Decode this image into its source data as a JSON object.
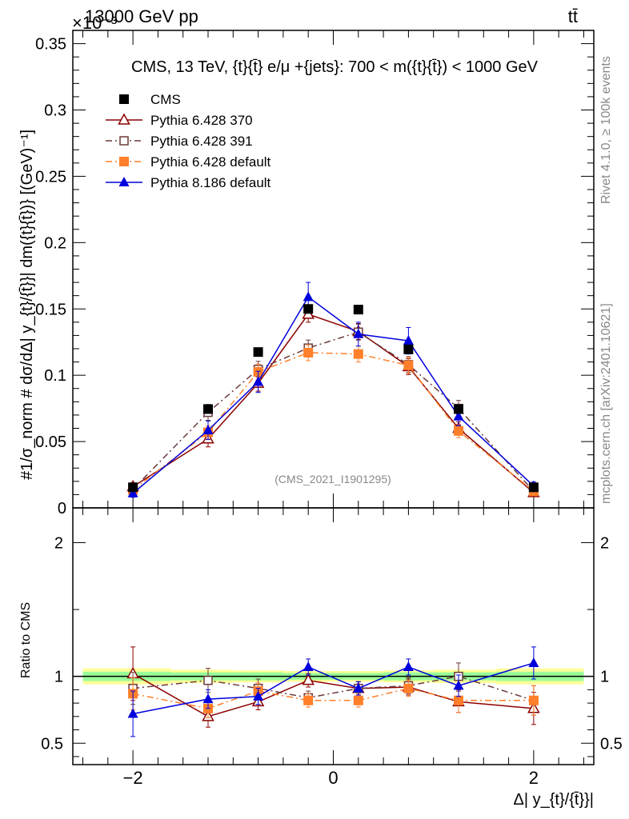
{
  "header": {
    "left": "13000 GeV pp",
    "right": "tt̄",
    "exponent": "×10⁻³"
  },
  "side": {
    "rivet": "Rivet 4.1.0, ≥ 100k events",
    "mcplots": "mcplots.cern.ch [arXiv:2401.10621]"
  },
  "labels": {
    "ratio_ylabel": "Ratio to CMS",
    "watermark": "(CMS_2021_I1901295)"
  },
  "chart_data": [
    {
      "type": "line",
      "title": "CMS, 13 TeV, {t}{t̄} e/μ +{jets}: 700 < m({t}{t̄}) < 1000 GeV",
      "xlabel": "Δ| y_{t}/{t̄}}|",
      "ylabel": "#1/σ_norm # dσ/dΔ| y_{t}/{t̄}}| dm({t}{t̄})} [(GeV)⁻¹]",
      "y_scale_note": "values ×10⁻³",
      "xlim": [
        -2.6,
        2.6
      ],
      "ylim": [
        0,
        0.36
      ],
      "yticks": [
        0,
        0.05,
        0.1,
        0.15,
        0.2,
        0.25,
        0.3,
        0.35
      ],
      "ytick_labels": [
        "0",
        "0.05",
        "0.1",
        "0.15",
        "0.2",
        "0.25",
        "0.3",
        "0.35"
      ],
      "xticks": [
        -2,
        0,
        2
      ],
      "xtick_labels": [
        "−2",
        "0",
        "2"
      ],
      "x": [
        -2,
        -1.25,
        -0.75,
        -0.25,
        0.25,
        0.75,
        1.25,
        2
      ],
      "legend_position": "top-left",
      "series": [
        {
          "name": "CMS",
          "color": "#000000",
          "marker": "square",
          "line": "none",
          "values": [
            0.0155,
            0.0745,
            0.1175,
            0.15,
            0.1495,
            0.1195,
            0.0745,
            0.0155
          ]
        },
        {
          "name": "Pythia 6.428 370",
          "color": "#8b0000",
          "marker": "triangle-open",
          "line": "solid",
          "values": [
            0.016,
            0.052,
            0.094,
            0.146,
            0.133,
            0.1065,
            0.06,
            0.0115
          ],
          "errors": [
            0.003,
            0.006,
            0.006,
            0.006,
            0.006,
            0.006,
            0.005,
            0.002
          ]
        },
        {
          "name": "Pythia 6.428 391",
          "color": "#6b3a3a",
          "marker": "square-open",
          "line": "dashdot",
          "values": [
            0.014,
            0.072,
            0.1045,
            0.1205,
            0.1325,
            0.108,
            0.075,
            0.0125
          ],
          "errors": [
            0.002,
            0.006,
            0.006,
            0.006,
            0.006,
            0.006,
            0.006,
            0.002
          ]
        },
        {
          "name": "Pythia 6.428 default",
          "color": "#ff7f2a",
          "marker": "square",
          "line": "dashdot",
          "values": [
            0.0135,
            0.057,
            0.1025,
            0.117,
            0.116,
            0.1075,
            0.058,
            0.0125
          ],
          "errors": [
            0.002,
            0.005,
            0.006,
            0.006,
            0.006,
            0.006,
            0.005,
            0.002
          ]
        },
        {
          "name": "Pythia 8.186 default",
          "color": "#0000dd",
          "marker": "triangle",
          "line": "solid",
          "values": [
            0.011,
            0.0585,
            0.095,
            0.159,
            0.131,
            0.126,
            0.069,
            0.0165
          ],
          "errors": [
            0.003,
            0.007,
            0.008,
            0.011,
            0.009,
            0.01,
            0.007,
            0.003
          ]
        }
      ]
    },
    {
      "type": "line",
      "title": "",
      "xlabel": "Δ| y_{t}/{t̄}}|",
      "ylabel": "Ratio to CMS",
      "xlim": [
        -2.6,
        2.6
      ],
      "ylim": [
        0.34,
        2.26
      ],
      "yticks": [
        0.5,
        1,
        2
      ],
      "ytick_labels": [
        "0.5",
        "1",
        "2"
      ],
      "x": [
        -2,
        -1.25,
        -0.75,
        -0.25,
        0.25,
        0.75,
        1.25,
        2
      ],
      "reference_line": 1,
      "bands": [
        {
          "name": "CMS total uncertainty",
          "color": "#ffff99",
          "half_width": [
            0.06,
            0.05,
            0.045,
            0.04,
            0.04,
            0.045,
            0.05,
            0.06
          ]
        },
        {
          "name": "CMS statistical uncertainty",
          "color": "#99ff99",
          "half_width": [
            0.035,
            0.03,
            0.03,
            0.025,
            0.025,
            0.03,
            0.03,
            0.035
          ]
        }
      ],
      "series": [
        {
          "name": "Pythia 6.428 370",
          "color": "#8b0000",
          "marker": "triangle-open",
          "line": "solid",
          "values": [
            1.02,
            0.7,
            0.81,
            0.97,
            0.91,
            0.92,
            0.81,
            0.76
          ],
          "errors": [
            0.2,
            0.08,
            0.06,
            0.05,
            0.05,
            0.06,
            0.08,
            0.12
          ]
        },
        {
          "name": "Pythia 6.428 391",
          "color": "#6b3a3a",
          "marker": "square-open",
          "line": "dashdot",
          "values": [
            0.91,
            0.97,
            0.91,
            0.84,
            0.91,
            0.93,
            1.0,
            0.82
          ],
          "errors": [
            0.12,
            0.09,
            0.07,
            0.05,
            0.05,
            0.06,
            0.1,
            0.11
          ]
        },
        {
          "name": "Pythia 6.428 default",
          "color": "#ff7f2a",
          "marker": "square",
          "line": "dashdot",
          "values": [
            0.87,
            0.76,
            0.89,
            0.82,
            0.82,
            0.91,
            0.82,
            0.82
          ],
          "errors": [
            0.12,
            0.07,
            0.06,
            0.05,
            0.05,
            0.06,
            0.09,
            0.11
          ]
        },
        {
          "name": "Pythia 8.186 default",
          "color": "#0000dd",
          "marker": "triangle",
          "line": "solid",
          "values": [
            0.72,
            0.83,
            0.85,
            1.07,
            0.91,
            1.07,
            0.93,
            1.1
          ],
          "errors": [
            0.17,
            0.07,
            0.06,
            0.06,
            0.05,
            0.06,
            0.08,
            0.12
          ]
        }
      ]
    }
  ]
}
